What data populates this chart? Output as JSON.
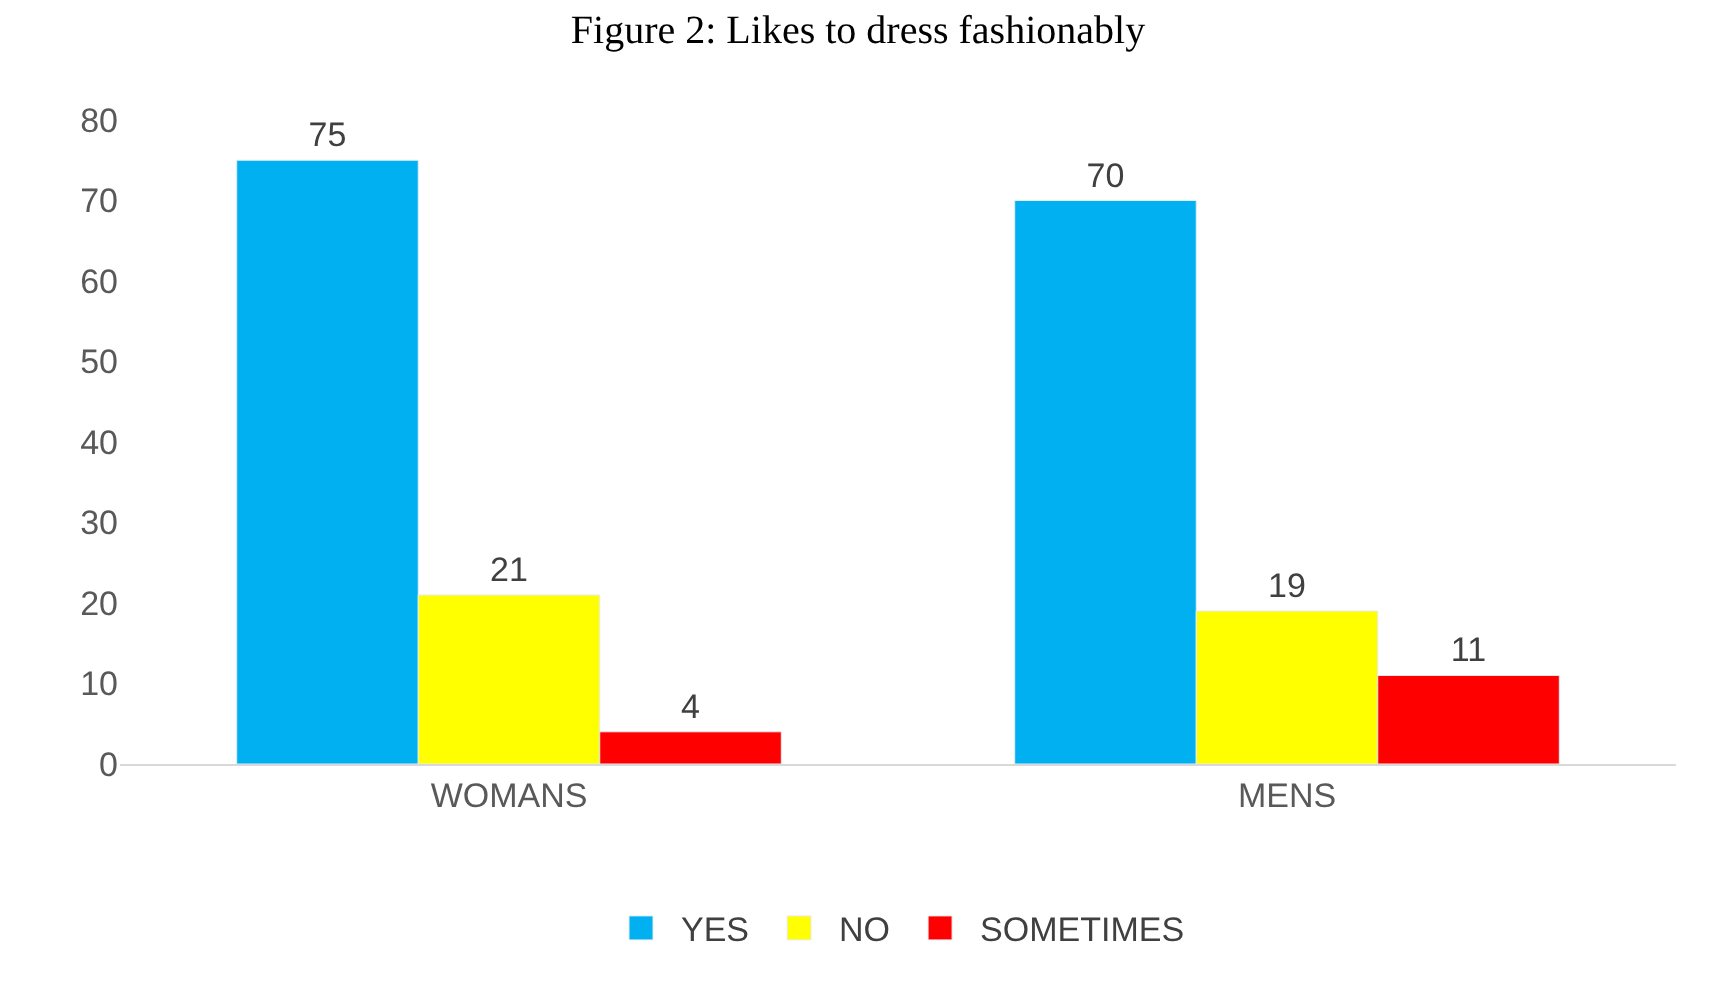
{
  "chart_data": {
    "type": "bar",
    "title": "Figure 2: Likes to dress fashionably",
    "categories": [
      "WOMANS",
      "MENS"
    ],
    "series": [
      {
        "name": "YES",
        "color": "#00b0f0",
        "values": [
          75,
          70
        ]
      },
      {
        "name": "NO",
        "color": "#ffff00",
        "values": [
          21,
          19
        ]
      },
      {
        "name": "SOMETIMES",
        "color": "#ff0000",
        "values": [
          4,
          11
        ]
      }
    ],
    "ylim": [
      0,
      80
    ],
    "yticks": [
      0,
      10,
      20,
      30,
      40,
      50,
      60,
      70,
      80
    ],
    "grid": false,
    "legend": "bottom",
    "data_labels": true
  }
}
